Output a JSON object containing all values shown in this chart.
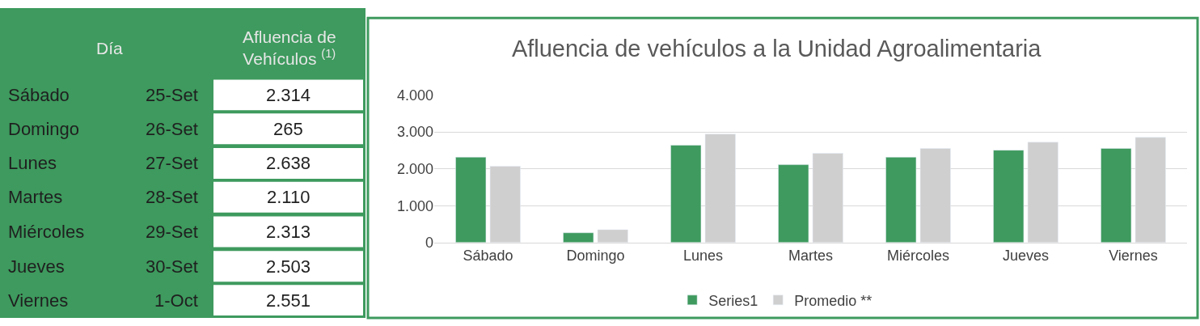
{
  "chart_data": {
    "type": "bar",
    "title": "Afluencia de vehículos a la Unidad Agroalimentaria",
    "categories": [
      "Sábado",
      "Domingo",
      "Lunes",
      "Martes",
      "Miércoles",
      "Jueves",
      "Viernes"
    ],
    "series": [
      {
        "name": "Series1",
        "color": "#3e9a5e",
        "values": [
          2314,
          265,
          2638,
          2110,
          2313,
          2503,
          2551
        ]
      },
      {
        "name": "Promedio **",
        "color": "#d0cfcf",
        "values": [
          2070,
          350,
          2940,
          2420,
          2550,
          2720,
          2850
        ]
      }
    ],
    "ylim": [
      0,
      4000
    ],
    "yticks": [
      {
        "value": 0,
        "label": "0"
      },
      {
        "value": 1000,
        "label": "1.000"
      },
      {
        "value": 2000,
        "label": "2.000"
      },
      {
        "value": 3000,
        "label": "3.000"
      },
      {
        "value": 4000,
        "label": "4.000"
      }
    ],
    "grid": "y",
    "legend": "bottom",
    "annotations": [
      "Día",
      "Afluencia de Vehículos $^{(1)}$",
      "25-Set",
      "26-Set",
      "27-Set",
      "28-Set",
      "29-Set",
      "30-Set",
      "1-Oct",
      "2.314",
      "265",
      "2.638",
      "2.110",
      "2.313",
      "2.503",
      "2.551"
    ]
  }
}
